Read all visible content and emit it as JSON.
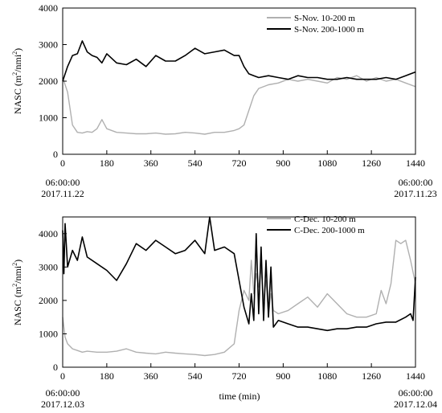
{
  "chart_data": [
    {
      "type": "line",
      "title": "",
      "xlabel": "",
      "ylabel": "NASC (m²/nmi²)",
      "ylabel_parts": [
        "NASC (m",
        "2",
        "/nmi",
        "2",
        ")"
      ],
      "xlim": [
        0,
        1440
      ],
      "ylim": [
        0,
        4000
      ],
      "xticks": [
        0,
        180,
        360,
        540,
        720,
        900,
        1080,
        1260,
        1440
      ],
      "yticks": [
        0,
        1000,
        2000,
        3000,
        4000
      ],
      "start_time": "06:00:00",
      "start_date": "2017.11.22",
      "end_time": "06:00:00",
      "end_date": "2017.11.23",
      "legend_position": "top-right",
      "series": [
        {
          "name": "S-Nov. 10-200 m",
          "color": "#b0b0b0",
          "x": [
            0,
            20,
            40,
            60,
            80,
            100,
            120,
            140,
            160,
            180,
            220,
            260,
            300,
            340,
            380,
            420,
            460,
            500,
            540,
            580,
            620,
            660,
            700,
            720,
            740,
            760,
            780,
            800,
            840,
            880,
            920,
            960,
            1000,
            1040,
            1080,
            1120,
            1160,
            1200,
            1240,
            1280,
            1320,
            1360,
            1400,
            1440
          ],
          "y": [
            2100,
            1700,
            800,
            600,
            580,
            620,
            600,
            700,
            950,
            700,
            600,
            580,
            560,
            560,
            580,
            550,
            560,
            600,
            580,
            550,
            600,
            600,
            650,
            700,
            800,
            1200,
            1600,
            1800,
            1900,
            1950,
            2050,
            2000,
            2050,
            2000,
            1950,
            2100,
            2050,
            2150,
            2000,
            2100,
            2000,
            2050,
            1950,
            1850
          ]
        },
        {
          "name": "S-Nov. 200-1000 m",
          "color": "#000000",
          "x": [
            0,
            20,
            40,
            60,
            80,
            100,
            120,
            140,
            160,
            180,
            220,
            260,
            300,
            340,
            380,
            420,
            460,
            500,
            540,
            580,
            620,
            660,
            700,
            720,
            740,
            760,
            780,
            800,
            840,
            880,
            920,
            960,
            1000,
            1040,
            1080,
            1120,
            1160,
            1200,
            1240,
            1280,
            1320,
            1360,
            1400,
            1440
          ],
          "y": [
            2000,
            2400,
            2700,
            2750,
            3100,
            2800,
            2700,
            2650,
            2500,
            2750,
            2500,
            2450,
            2600,
            2400,
            2700,
            2550,
            2550,
            2700,
            2900,
            2750,
            2800,
            2850,
            2700,
            2700,
            2400,
            2200,
            2150,
            2100,
            2150,
            2100,
            2050,
            2150,
            2100,
            2100,
            2050,
            2050,
            2100,
            2050,
            2050,
            2050,
            2100,
            2050,
            2150,
            2250
          ]
        }
      ]
    },
    {
      "type": "line",
      "title": "",
      "xlabel": "time (min)",
      "ylabel": "NASC (m²/nmi²)",
      "ylabel_parts": [
        "NASC (m",
        "2",
        "/nmi",
        "2",
        ")"
      ],
      "xlim": [
        0,
        1440
      ],
      "ylim": [
        0,
        4500
      ],
      "xticks": [
        0,
        180,
        360,
        540,
        720,
        900,
        1080,
        1260,
        1440
      ],
      "yticks": [
        0,
        1000,
        2000,
        3000,
        4000
      ],
      "start_time": "06:00:00",
      "start_date": "2017.12.03",
      "end_time": "06:00:00",
      "end_date": "2017.12.04",
      "legend_position": "top-right",
      "series": [
        {
          "name": "C-Dec. 10-200 m",
          "color": "#b0b0b0",
          "x": [
            0,
            10,
            20,
            40,
            60,
            80,
            100,
            140,
            180,
            220,
            260,
            300,
            340,
            380,
            420,
            460,
            500,
            540,
            580,
            620,
            660,
            700,
            720,
            740,
            760,
            770,
            780,
            790,
            800,
            810,
            820,
            830,
            840,
            850,
            860,
            880,
            920,
            960,
            1000,
            1040,
            1080,
            1120,
            1160,
            1200,
            1240,
            1280,
            1300,
            1320,
            1340,
            1360,
            1380,
            1400,
            1420,
            1440
          ],
          "y": [
            1500,
            900,
            700,
            550,
            500,
            450,
            480,
            450,
            450,
            480,
            550,
            450,
            420,
            400,
            450,
            420,
            400,
            380,
            350,
            380,
            450,
            700,
            1700,
            2300,
            2000,
            3200,
            2200,
            2800,
            2400,
            3000,
            2000,
            2600,
            1600,
            2200,
            1700,
            1600,
            1700,
            1900,
            2100,
            1800,
            2200,
            1900,
            1600,
            1500,
            1500,
            1600,
            2300,
            1900,
            2500,
            3800,
            3700,
            3800,
            3200,
            2500
          ]
        },
        {
          "name": "C-Dec. 200-1000 m",
          "color": "#000000",
          "x": [
            0,
            5,
            10,
            20,
            40,
            60,
            80,
            100,
            140,
            180,
            220,
            260,
            300,
            340,
            380,
            420,
            460,
            500,
            540,
            580,
            600,
            620,
            660,
            700,
            720,
            740,
            760,
            770,
            780,
            790,
            800,
            810,
            820,
            830,
            840,
            850,
            860,
            880,
            920,
            960,
            1000,
            1040,
            1080,
            1120,
            1160,
            1200,
            1240,
            1280,
            1320,
            1360,
            1400,
            1420,
            1430,
            1440
          ],
          "y": [
            4100,
            2800,
            4300,
            3000,
            3500,
            3200,
            3900,
            3300,
            3100,
            2900,
            2600,
            3100,
            3700,
            3500,
            3800,
            3600,
            3400,
            3500,
            3800,
            3400,
            4500,
            3500,
            3600,
            3400,
            2600,
            1800,
            1300,
            2200,
            1400,
            4000,
            1600,
            3600,
            1400,
            3200,
            1500,
            3000,
            1200,
            1400,
            1300,
            1200,
            1200,
            1150,
            1100,
            1150,
            1150,
            1200,
            1200,
            1300,
            1350,
            1350,
            1500,
            1600,
            1400,
            2700
          ]
        }
      ]
    }
  ]
}
